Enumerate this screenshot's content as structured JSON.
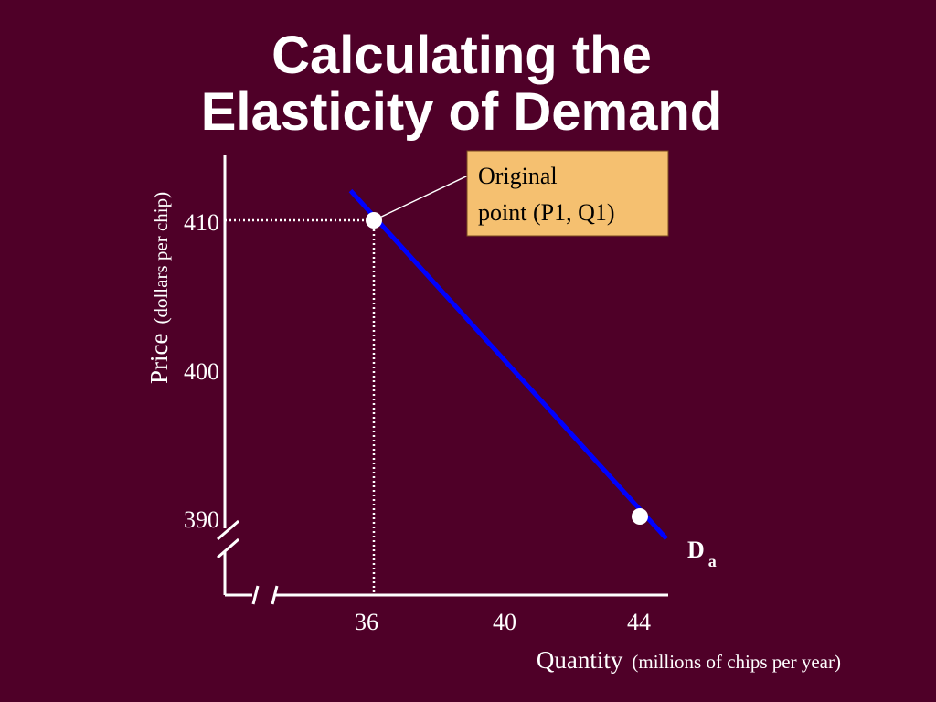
{
  "slide": {
    "title_line1": "Calculating the",
    "title_line2": "Elasticity of Demand"
  },
  "colors": {
    "background": "#4f0028",
    "axis": "#ffffff",
    "demand_line": "#0000ff",
    "callout_fill": "#f5c070",
    "text": "#ffffff"
  },
  "chart_data": {
    "type": "line",
    "x_axis": {
      "label_main": "Quantity",
      "label_unit": "(millions of chips per year)",
      "ticks": [
        36,
        40,
        44
      ],
      "range": [
        32,
        46
      ],
      "broken": true
    },
    "y_axis": {
      "label_main": "Price",
      "label_unit": "(dollars per chip)",
      "ticks": [
        390,
        400,
        410
      ],
      "range": [
        385,
        414
      ],
      "broken": true
    },
    "grid": false,
    "series": [
      {
        "name": "Da",
        "name_main": "D",
        "name_sub": "a",
        "points": [
          [
            35.3,
            412
          ],
          [
            44.8,
            388.5
          ]
        ]
      }
    ],
    "points": [
      {
        "x": 36,
        "y": 410
      },
      {
        "x": 44,
        "y": 390
      }
    ],
    "annotation": {
      "line1": "Original",
      "line2": "point (P1, Q1)",
      "target": {
        "x": 36,
        "y": 410
      }
    }
  }
}
